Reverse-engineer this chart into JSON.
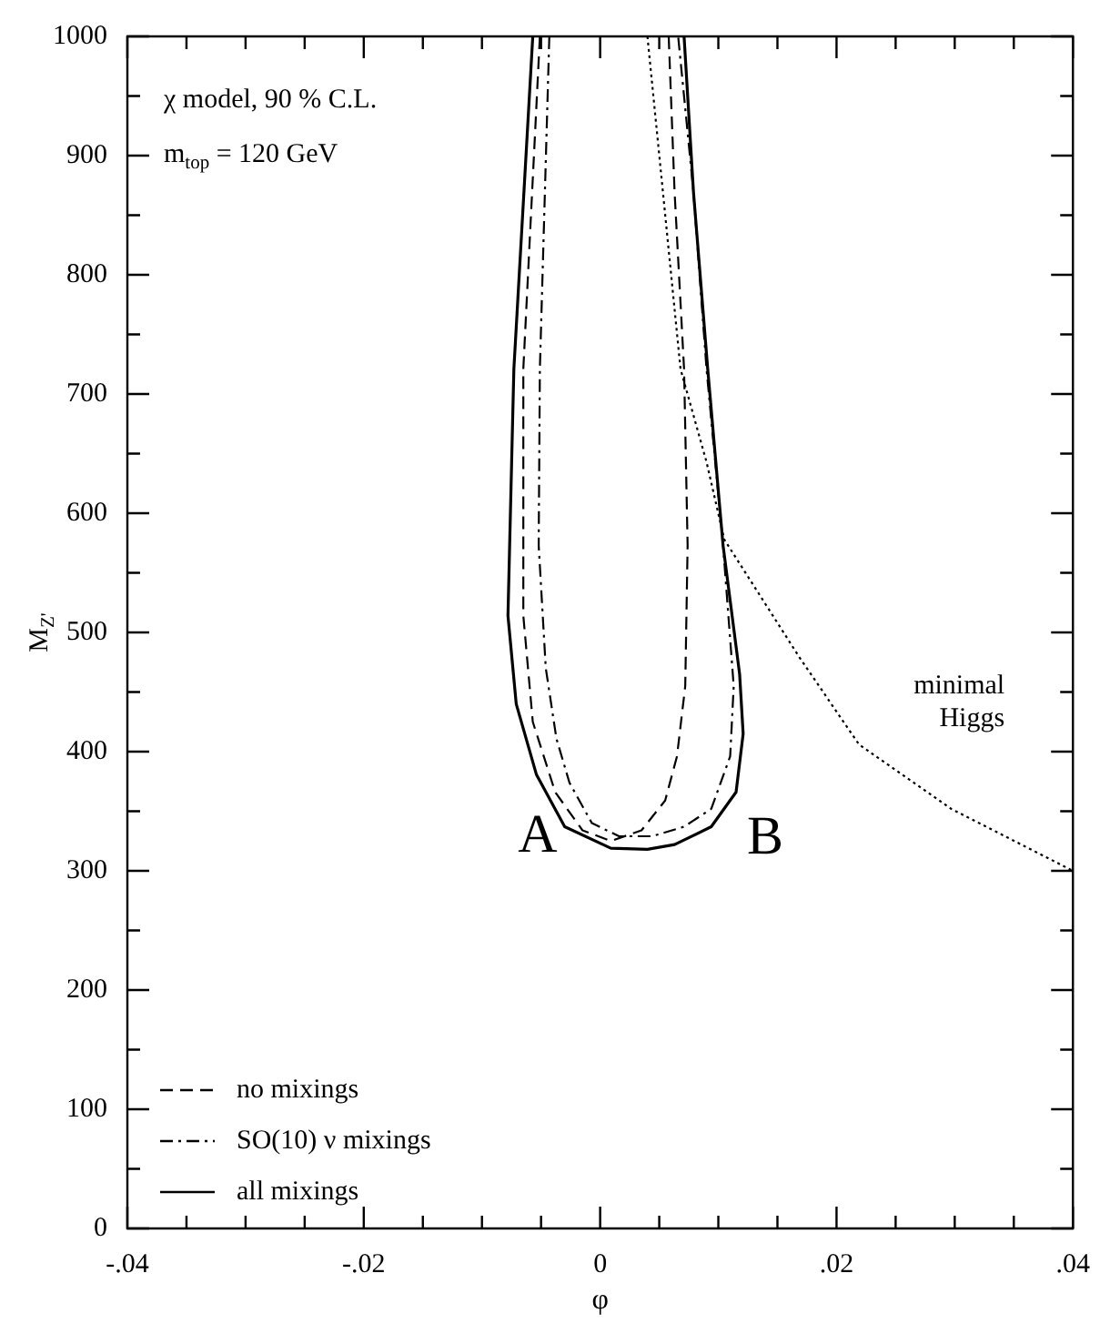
{
  "chart_data": {
    "type": "line",
    "xlabel": "φ",
    "ylabel": "M$_{Z'}$",
    "xlim": [
      -0.04,
      0.04
    ],
    "ylim": [
      0,
      1000
    ],
    "xticks": [
      {
        "value": -0.04,
        "label": "-.04"
      },
      {
        "value": -0.035,
        "label": null
      },
      {
        "value": -0.03,
        "label": null
      },
      {
        "value": -0.025,
        "label": null
      },
      {
        "value": -0.02,
        "label": "-.02"
      },
      {
        "value": -0.015,
        "label": null
      },
      {
        "value": -0.01,
        "label": null
      },
      {
        "value": -0.005,
        "label": null
      },
      0,
      {
        "value": 0.005,
        "label": null
      },
      {
        "value": 0.01,
        "label": null
      },
      {
        "value": 0.015,
        "label": null
      },
      {
        "value": 0.02,
        "label": ".02"
      },
      {
        "value": 0.025,
        "label": null
      },
      {
        "value": 0.03,
        "label": null
      },
      {
        "value": 0.035,
        "label": null
      },
      {
        "value": 0.04,
        "label": ".04"
      }
    ],
    "yticks": [
      0,
      {
        "value": 50,
        "label": null
      },
      100,
      {
        "value": 150,
        "label": null
      },
      200,
      {
        "value": 250,
        "label": null
      },
      300,
      {
        "value": 350,
        "label": null
      },
      400,
      {
        "value": 450,
        "label": null
      },
      500,
      {
        "value": 550,
        "label": null
      },
      600,
      {
        "value": 650,
        "label": null
      },
      700,
      {
        "value": 750,
        "label": null
      },
      800,
      {
        "value": 850,
        "label": null
      },
      900,
      {
        "value": 950,
        "label": null
      },
      1000
    ],
    "grid": false,
    "legend": "bottom left",
    "marker": "none",
    "series": [
      {
        "name": "no mixings",
        "color": "#000000",
        "line_style": "dashed",
        "x": [
          -0.0051,
          -0.0065,
          -0.0065,
          -0.0057,
          -0.0038,
          -0.0015,
          0.0009,
          0.0035,
          0.0055,
          0.0065,
          0.0072,
          0.0074,
          0.0071,
          0.0063,
          0.0058
        ],
        "values": [
          1000,
          721,
          514,
          425,
          366,
          334,
          325,
          334,
          359,
          396,
          455,
          573,
          721,
          869,
          1000
        ]
      },
      {
        "name": "SO(10) ν mixings",
        "color": "#000000",
        "line_style": "dashdot",
        "x": [
          -0.0043,
          -0.0051,
          -0.0052,
          -0.0046,
          -0.0037,
          -0.0026,
          -0.0007,
          0.0016,
          0.0044,
          0.0071,
          0.0094,
          0.011,
          0.0113,
          0.0104,
          0.009,
          0.0079,
          0.0066
        ],
        "values": [
          1000,
          721,
          573,
          470,
          411,
          374,
          340,
          329,
          329,
          337,
          352,
          396,
          455,
          573,
          721,
          869,
          1000
        ]
      },
      {
        "name": "all mixings",
        "color": "#000000",
        "line_style": "solid",
        "x": [
          -0.0057,
          -0.0073,
          -0.0078,
          -0.0071,
          -0.0054,
          -0.003,
          0.0009,
          0.004,
          0.0063,
          0.0094,
          0.0115,
          0.0121,
          0.0118,
          0.0104,
          0.0091,
          0.0079,
          0.0071
        ],
        "values": [
          1000,
          721,
          514,
          440,
          381,
          337,
          319,
          318,
          322,
          337,
          366,
          415,
          465,
          573,
          721,
          869,
          1000
        ]
      },
      {
        "color": "#000000",
        "line_style": "dotted",
        "x": [
          0.004,
          0.0068,
          0.009,
          0.0105,
          0.0168,
          0.0219,
          0.0297,
          0.04
        ],
        "values": [
          1000,
          721,
          643,
          578,
          480,
          406,
          352,
          300
        ]
      }
    ],
    "annotations": [
      "χ model, 90 % C.L.",
      "m$_{top}$ = 120 GeV",
      {
        "text": "minimal Higgs",
        "x": 0.0219,
        "y": 406
      },
      {
        "text": "A",
        "x": -0.003,
        "y": 337
      },
      {
        "text": "B",
        "x": 0.0115,
        "y": 366
      }
    ]
  }
}
